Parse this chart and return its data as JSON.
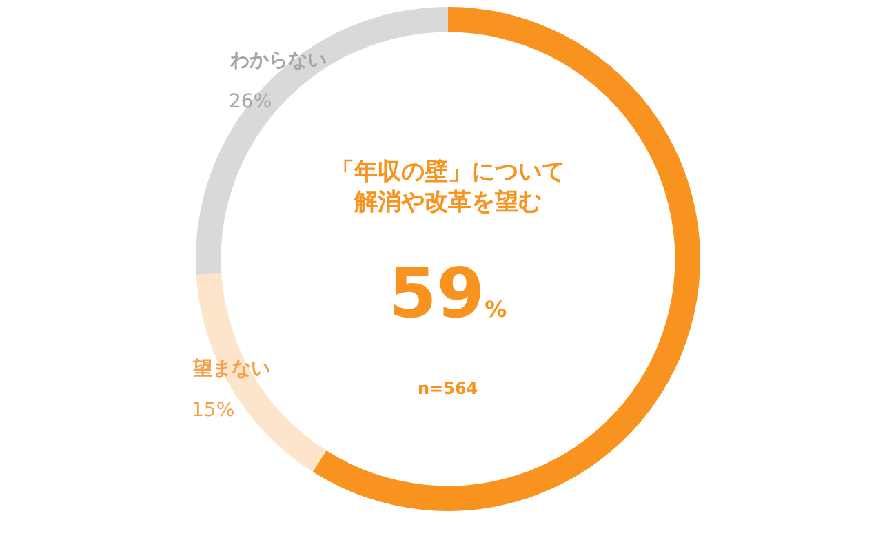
{
  "chart_data": {
    "type": "donut",
    "categories": [
      "「年収の壁」について解消や改革を望む",
      "望まない",
      "わからない"
    ],
    "values": [
      59,
      15,
      26
    ],
    "colors": [
      "#f7931e",
      "#fde5cc",
      "#d9d9d9"
    ],
    "value_labels": [
      "59%",
      "15%",
      "26%"
    ],
    "annotations": [
      "n=564"
    ],
    "legend": false
  }
}
